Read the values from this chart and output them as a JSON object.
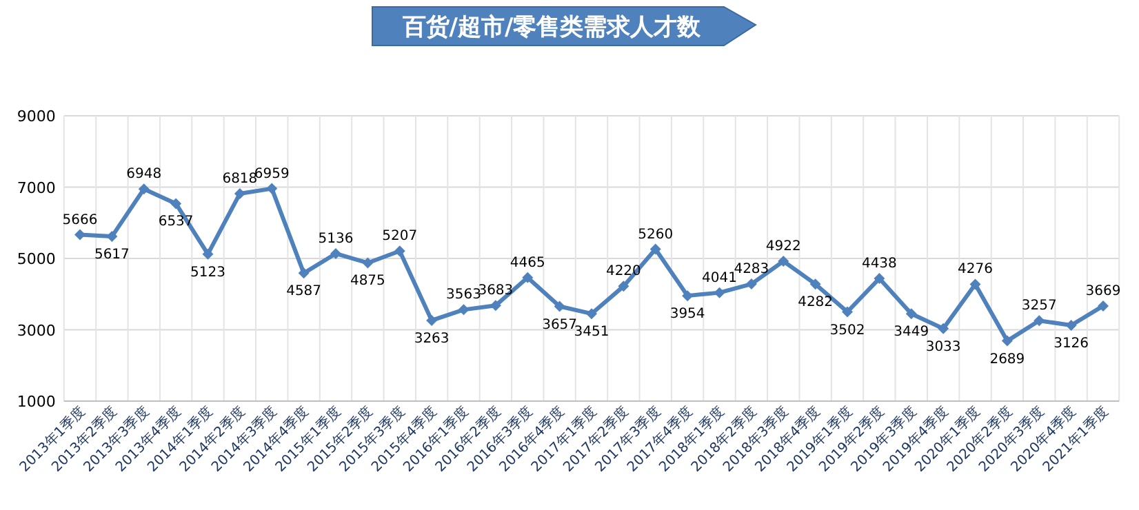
{
  "chart_data": {
    "type": "line",
    "title": "百货/超市/零售类需求人才数",
    "categories": [
      "2013年1季度",
      "2013年2季度",
      "2013年3季度",
      "2013年4季度",
      "2014年1季度",
      "2014年2季度",
      "2014年3季度",
      "2014年4季度",
      "2015年1季度",
      "2015年2季度",
      "2015年3季度",
      "2015年4季度",
      "2016年1季度",
      "2016年2季度",
      "2016年3季度",
      "2016年4季度",
      "2017年1季度",
      "2017年2季度",
      "2017年3季度",
      "2017年4季度",
      "2018年1季度",
      "2018年2季度",
      "2018年3季度",
      "2018年4季度",
      "2019年1季度",
      "2019年2季度",
      "2019年3季度",
      "2019年4季度",
      "2020年1季度",
      "2020年2季度",
      "2020年3季度",
      "2020年4季度",
      "2021年1季度"
    ],
    "series": [
      {
        "color": "#4f81bd",
        "values": [
          5666,
          5617,
          6948,
          6537,
          5123,
          6818,
          6959,
          4587,
          5136,
          4875,
          5207,
          3263,
          3563,
          3683,
          4465,
          3657,
          3451,
          4220,
          5260,
          3954,
          4041,
          4283,
          4922,
          4282,
          3502,
          4438,
          3449,
          3033,
          4276,
          2689,
          3257,
          3126,
          3669
        ]
      }
    ],
    "ylim": [
      1000,
      9000
    ],
    "yticks": [
      1000,
      3000,
      5000,
      7000,
      9000
    ],
    "grid": true,
    "data_labels": true,
    "marker": "diamond",
    "line_style": "solid"
  }
}
